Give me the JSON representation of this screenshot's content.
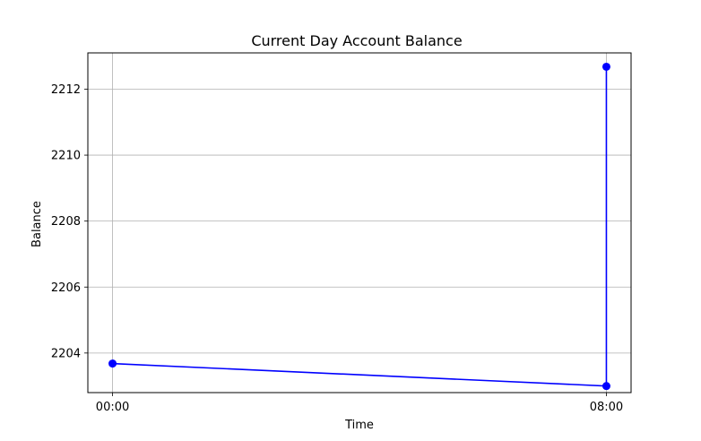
{
  "chart_data": {
    "type": "line",
    "title": "Current Day Account Balance",
    "xlabel": "Time",
    "ylabel": "Balance",
    "x_ticks": [
      "00:00",
      "08:00"
    ],
    "y_ticks": [
      2204,
      2206,
      2208,
      2210,
      2212
    ],
    "xlim": [
      -0.05,
      1.05
    ],
    "ylim": [
      2202.8,
      2213.1
    ],
    "grid": true,
    "series": [
      {
        "x": [
          "00:00",
          "08:00",
          "08:00"
        ],
        "values": [
          2203.68,
          2203.0,
          2212.68
        ],
        "color": "#0000ff",
        "marker": "circle"
      }
    ]
  }
}
